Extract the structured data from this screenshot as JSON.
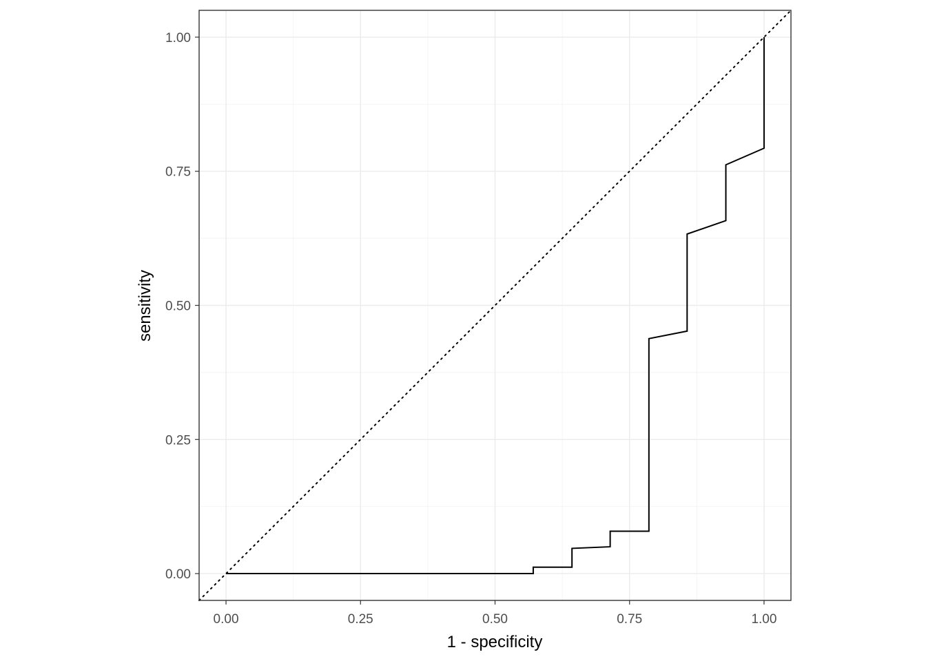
{
  "chart_data": {
    "type": "line",
    "title": "",
    "xlabel": "1 - specificity",
    "ylabel": "sensitivity",
    "xlim": [
      -0.05,
      1.05
    ],
    "ylim": [
      -0.05,
      1.05
    ],
    "x_ticks": [
      "0.00",
      "0.25",
      "0.50",
      "0.75",
      "1.00"
    ],
    "y_ticks": [
      "0.00",
      "0.25",
      "0.50",
      "0.75",
      "1.00"
    ],
    "grid": true,
    "reference_line": {
      "style": "dotted",
      "from": [
        -0.05,
        -0.05
      ],
      "to": [
        1.05,
        1.05
      ]
    },
    "series": [
      {
        "style": "step",
        "color": "#000000",
        "x": [
          0.0,
          0.571,
          0.571,
          0.643,
          0.643,
          0.714,
          0.714,
          0.786,
          0.786,
          0.857,
          0.857,
          0.929,
          0.929,
          1.0,
          1.0
        ],
        "y": [
          0.0,
          0.0,
          0.012,
          0.012,
          0.047,
          0.05,
          0.079,
          0.079,
          0.438,
          0.452,
          0.633,
          0.658,
          0.762,
          0.793,
          1.0
        ]
      }
    ]
  }
}
